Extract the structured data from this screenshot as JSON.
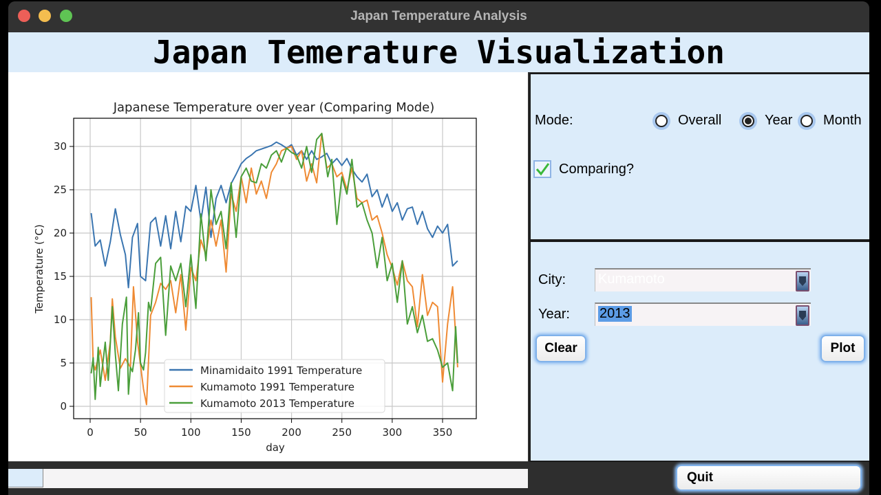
{
  "window": {
    "title": "Japan Temperature Analysis"
  },
  "header": {
    "title": "Japan Temerature Visualization"
  },
  "controls": {
    "mode_label": "Mode:",
    "mode_options": [
      {
        "label": "Overall",
        "selected": false
      },
      {
        "label": "Year",
        "selected": true
      },
      {
        "label": "Month",
        "selected": false
      }
    ],
    "comparing_label": "Comparing?",
    "comparing_checked": true,
    "city_label": "City:",
    "city_value": "Kumamoto",
    "year_label": "Year:",
    "year_value": "2013",
    "clear_button": "Clear",
    "plot_button": "Plot",
    "quit_button": "Quit"
  },
  "colors": {
    "panel_bg": "#dcecfa",
    "series_blue": "#3a75b0",
    "series_orange": "#ef8a33",
    "series_green": "#4a9e3a"
  },
  "chart_data": {
    "type": "line",
    "title": "Japanese Temperature over year (Comparing Mode)",
    "xlabel": "day",
    "ylabel": "Temperature (°C)",
    "xlim": [
      -17,
      383
    ],
    "ylim": [
      -1.4,
      33.3
    ],
    "xticks": [
      0,
      50,
      100,
      150,
      200,
      250,
      300,
      350
    ],
    "yticks": [
      0,
      5,
      10,
      15,
      20,
      25,
      30
    ],
    "grid": true,
    "legend_position": "lower center",
    "series": [
      {
        "name": "Minamidaito 1991  Temperature",
        "color": "#3a75b0",
        "x": [
          1,
          5,
          10,
          15,
          20,
          25,
          30,
          35,
          38,
          42,
          47,
          50,
          55,
          60,
          65,
          70,
          75,
          80,
          85,
          90,
          95,
          100,
          105,
          110,
          115,
          120,
          125,
          130,
          135,
          140,
          145,
          150,
          155,
          160,
          165,
          170,
          175,
          180,
          185,
          190,
          195,
          200,
          205,
          210,
          215,
          220,
          225,
          230,
          235,
          240,
          245,
          250,
          255,
          260,
          265,
          270,
          275,
          280,
          285,
          290,
          295,
          300,
          305,
          310,
          315,
          320,
          325,
          330,
          335,
          340,
          345,
          350,
          355,
          360,
          365
        ],
        "y": [
          22.3,
          18.5,
          19.2,
          16.2,
          19.0,
          22.8,
          19.8,
          17.5,
          13.7,
          19.5,
          21.1,
          15.0,
          14.5,
          21.2,
          21.8,
          18.5,
          22.0,
          18.2,
          22.5,
          19.0,
          23.1,
          22.5,
          25.5,
          21.4,
          25.3,
          19.5,
          24.0,
          25.5,
          23.5,
          25.7,
          26.8,
          28.0,
          28.6,
          29.0,
          29.5,
          29.7,
          29.9,
          30.1,
          30.5,
          30.2,
          29.8,
          30.2,
          29.0,
          29.5,
          28.5,
          29.5,
          28.5,
          28.8,
          29.2,
          28.0,
          28.6,
          27.8,
          28.6,
          27.4,
          26.5,
          25.9,
          26.8,
          24.2,
          25.0,
          23.0,
          24.5,
          22.5,
          23.5,
          21.5,
          22.8,
          23.0,
          21.0,
          22.5,
          20.5,
          19.5,
          20.8,
          20.0,
          21.0,
          16.2,
          16.8
        ]
      },
      {
        "name": "Kumamoto 1991  Temperature",
        "color": "#ef8a33",
        "x": [
          1,
          3,
          5,
          10,
          15,
          20,
          22,
          25,
          30,
          35,
          40,
          43,
          47,
          50,
          53,
          56,
          60,
          65,
          70,
          75,
          80,
          85,
          90,
          95,
          100,
          105,
          110,
          115,
          120,
          125,
          130,
          135,
          140,
          145,
          150,
          155,
          160,
          165,
          170,
          175,
          180,
          185,
          190,
          195,
          200,
          205,
          210,
          215,
          220,
          225,
          230,
          235,
          240,
          245,
          250,
          255,
          260,
          265,
          270,
          275,
          280,
          285,
          290,
          295,
          300,
          305,
          310,
          315,
          320,
          325,
          330,
          335,
          340,
          345,
          350,
          355,
          360,
          365
        ],
        "y": [
          12.6,
          5.0,
          4.2,
          6.5,
          3.0,
          7.5,
          12.4,
          8.0,
          4.4,
          5.5,
          4.5,
          13.8,
          7.5,
          4.8,
          2.0,
          0.2,
          10.5,
          12.0,
          14.2,
          13.5,
          14.5,
          10.8,
          15.2,
          8.8,
          16.0,
          14.5,
          19.2,
          17.5,
          21.5,
          18.5,
          21.5,
          15.5,
          24.5,
          22.5,
          26.5,
          23.5,
          27.5,
          24.5,
          26.0,
          24.0,
          27.0,
          28.0,
          29.5,
          29.8,
          30.0,
          28.5,
          29.5,
          26.0,
          28.0,
          25.8,
          31.5,
          27.5,
          28.0,
          26.5,
          27.0,
          25.0,
          27.5,
          24.0,
          23.5,
          23.8,
          21.5,
          22.0,
          20.0,
          17.5,
          16.0,
          14.0,
          16.8,
          14.5,
          13.8,
          9.2,
          15.2,
          10.5,
          12.0,
          11.5,
          2.8,
          9.5,
          13.8,
          4.5
        ]
      },
      {
        "name": "Kumamoto 2013  Temperature",
        "color": "#4a9e3a",
        "x": [
          1,
          3,
          5,
          8,
          10,
          15,
          18,
          22,
          25,
          28,
          32,
          36,
          38,
          40,
          42,
          45,
          48,
          50,
          53,
          55,
          58,
          60,
          65,
          70,
          75,
          80,
          85,
          90,
          95,
          100,
          105,
          110,
          115,
          120,
          125,
          130,
          135,
          140,
          145,
          150,
          155,
          160,
          165,
          170,
          175,
          180,
          185,
          190,
          195,
          200,
          205,
          210,
          215,
          220,
          225,
          230,
          233,
          236,
          240,
          245,
          250,
          255,
          260,
          265,
          270,
          275,
          280,
          285,
          290,
          295,
          300,
          305,
          310,
          315,
          320,
          325,
          330,
          335,
          340,
          345,
          350,
          355,
          360,
          363,
          365
        ],
        "y": [
          3.8,
          5.6,
          0.8,
          6.8,
          2.3,
          7.4,
          3.0,
          11.5,
          6.0,
          1.8,
          9.5,
          12.6,
          1.4,
          4.5,
          4.0,
          6.5,
          10.8,
          5.0,
          4.2,
          6.2,
          12.0,
          11.0,
          16.5,
          17.2,
          8.2,
          16.2,
          14.5,
          16.5,
          11.5,
          17.5,
          11.3,
          22.2,
          16.8,
          25.0,
          21.0,
          22.5,
          18.2,
          25.8,
          19.5,
          26.5,
          27.5,
          26.0,
          25.8,
          28.0,
          27.5,
          29.0,
          29.5,
          28.2,
          29.8,
          29.3,
          29.0,
          27.5,
          30.0,
          27.0,
          30.8,
          31.5,
          29.0,
          26.5,
          28.5,
          21.0,
          26.5,
          24.5,
          28.5,
          23.0,
          23.5,
          21.5,
          20.0,
          16.0,
          19.5,
          14.5,
          16.5,
          12.0,
          16.8,
          9.5,
          11.5,
          8.5,
          10.5,
          7.5,
          7.8,
          6.5,
          4.5,
          5.0,
          1.8,
          9.2,
          5.0
        ]
      }
    ]
  }
}
